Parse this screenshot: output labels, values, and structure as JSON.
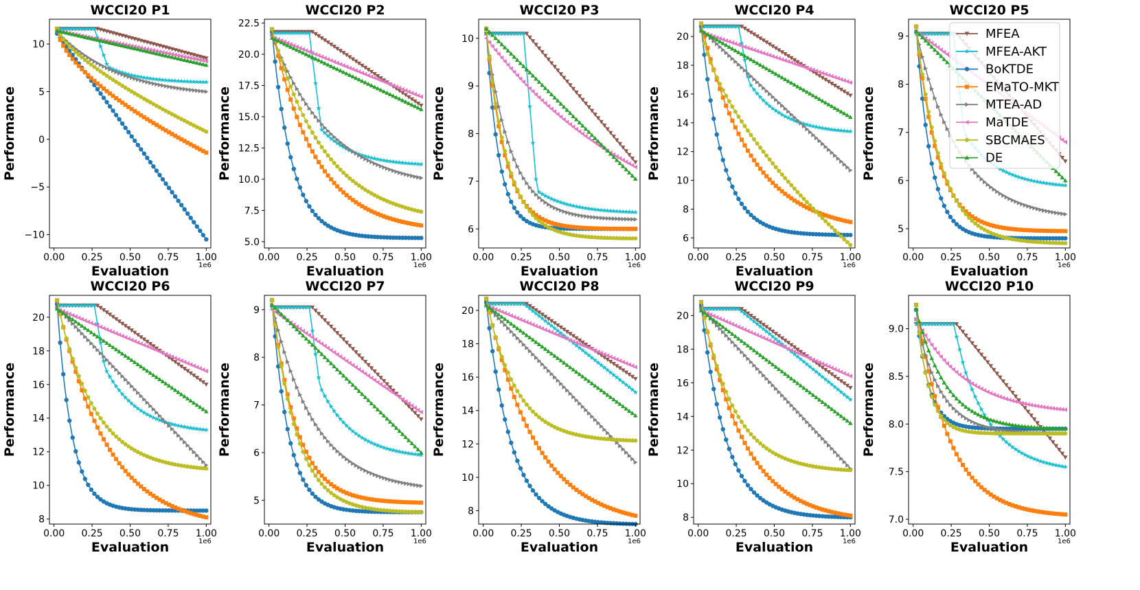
{
  "chart_data": {
    "type": "line",
    "series_names": [
      "MFEA",
      "MFEA-AKT",
      "BoKTDE",
      "EMaTO-MKT",
      "MTEA-AD",
      "MaTDE",
      "SBCMAES",
      "DE"
    ],
    "series_colors": [
      "#8c564b",
      "#17becf",
      "#1f77b4",
      "#ff7f0e",
      "#7f7f7f",
      "#e377c2",
      "#bcbd22",
      "#2ca02c"
    ],
    "series_markers": [
      "triangle-down",
      "star",
      "circle",
      "square",
      "triangle-right",
      "triangle-left",
      "pentagon",
      "triangle-up"
    ],
    "xlabel": "Evaluation",
    "ylabel": "Performance",
    "x_tick_labels": [
      "0.00",
      "0.25",
      "0.50",
      "0.75",
      "1.00"
    ],
    "x_offset_label": "1e6",
    "xlim": [
      -0.03,
      1.03
    ],
    "panels": [
      {
        "title": "WCCI20 P1",
        "ylim": [
          -11.4,
          12.6
        ],
        "yticks": [
          -10,
          -5,
          0,
          5,
          10
        ],
        "yticklabels": [
          "−10",
          "−5",
          "0",
          "5",
          "10"
        ],
        "series": [
          {
            "start": 11.6,
            "end": 8.5,
            "shape": "plateau_linear",
            "t0": 0.27
          },
          {
            "start": 11.6,
            "end": 6.0,
            "shape": "plateau_drop",
            "t0": 0.25,
            "drop": 7.6,
            "t1": 0.34
          },
          {
            "start": 11.1,
            "end": -10.5,
            "shape": "linear"
          },
          {
            "start": 11.6,
            "end": -1.4,
            "shape": "concave",
            "k": 1.6
          },
          {
            "start": 11.3,
            "end": 5.0,
            "shape": "exp",
            "k": 2.4
          },
          {
            "start": 11.4,
            "end": 8.2,
            "shape": "linear"
          },
          {
            "start": 11.6,
            "end": 0.8,
            "shape": "concave",
            "k": 1.4
          },
          {
            "start": 11.4,
            "end": 7.8,
            "shape": "linear"
          }
        ]
      },
      {
        "title": "WCCI20 P2",
        "ylim": [
          4.5,
          22.8
        ],
        "yticks": [
          5.0,
          7.5,
          10.0,
          12.5,
          15.0,
          17.5,
          20.0,
          22.5
        ],
        "yticklabels": [
          "5.0",
          "7.5",
          "10.0",
          "12.5",
          "15.0",
          "17.5",
          "20.0",
          "22.5"
        ],
        "series": [
          {
            "start": 21.8,
            "end": 15.9,
            "shape": "plateau_linear",
            "t0": 0.27
          },
          {
            "start": 21.7,
            "end": 11.2,
            "shape": "plateau_drop",
            "t0": 0.25,
            "drop": 14.0,
            "t1": 0.33
          },
          {
            "start": 21.8,
            "end": 5.3,
            "shape": "exp",
            "k": 7.5
          },
          {
            "start": 22.0,
            "end": 6.3,
            "shape": "exp",
            "k": 3.4
          },
          {
            "start": 21.6,
            "end": 10.1,
            "shape": "exp",
            "k": 2.6
          },
          {
            "start": 21.4,
            "end": 16.6,
            "shape": "linear"
          },
          {
            "start": 22.0,
            "end": 7.4,
            "shape": "exp",
            "k": 2.8
          },
          {
            "start": 21.3,
            "end": 15.6,
            "shape": "linear"
          }
        ]
      },
      {
        "title": "WCCI20 P3",
        "ylim": [
          5.6,
          10.4
        ],
        "yticks": [
          6,
          7,
          8,
          9,
          10
        ],
        "yticklabels": [
          "6",
          "7",
          "8",
          "9",
          "10"
        ],
        "series": [
          {
            "start": 10.1,
            "end": 7.4,
            "shape": "plateau_linear",
            "t0": 0.27
          },
          {
            "start": 10.1,
            "end": 6.35,
            "shape": "plateau_drop",
            "t0": 0.25,
            "drop": 6.8,
            "t1": 0.34
          },
          {
            "start": 10.2,
            "end": 6.0,
            "shape": "exp",
            "k": 12.0
          },
          {
            "start": 10.2,
            "end": 6.0,
            "shape": "exp",
            "k": 8.0
          },
          {
            "start": 10.1,
            "end": 6.2,
            "shape": "exp",
            "k": 6.0
          },
          {
            "start": 10.0,
            "end": 7.3,
            "shape": "exp",
            "k": 0.9
          },
          {
            "start": 10.2,
            "end": 5.8,
            "shape": "exp",
            "k": 7.0
          },
          {
            "start": 10.2,
            "end": 7.05,
            "shape": "linear"
          }
        ]
      },
      {
        "title": "WCCI20 P4",
        "ylim": [
          5.3,
          21.2
        ],
        "yticks": [
          6,
          8,
          10,
          12,
          14,
          16,
          18,
          20
        ],
        "yticklabels": [
          "6",
          "8",
          "10",
          "12",
          "14",
          "16",
          "18",
          "20"
        ],
        "series": [
          {
            "start": 20.7,
            "end": 15.9,
            "shape": "plateau_linear",
            "t0": 0.27
          },
          {
            "start": 20.7,
            "end": 13.4,
            "shape": "plateau_drop",
            "t0": 0.25,
            "drop": 16.8,
            "t1": 0.32
          },
          {
            "start": 20.7,
            "end": 6.2,
            "shape": "exp",
            "k": 7.0
          },
          {
            "start": 20.9,
            "end": 7.1,
            "shape": "exp",
            "k": 3.0
          },
          {
            "start": 20.5,
            "end": 10.7,
            "shape": "linear"
          },
          {
            "start": 20.3,
            "end": 16.8,
            "shape": "linear"
          },
          {
            "start": 20.9,
            "end": 5.5,
            "shape": "concave",
            "k": 1.6
          },
          {
            "start": 20.4,
            "end": 14.4,
            "shape": "linear"
          }
        ]
      },
      {
        "title": "WCCI20 P5",
        "ylim": [
          4.6,
          9.35
        ],
        "yticks": [
          5,
          6,
          7,
          8,
          9
        ],
        "yticklabels": [
          "5",
          "6",
          "7",
          "8",
          "9"
        ],
        "series": [
          {
            "start": 9.05,
            "end": 6.4,
            "shape": "plateau_linear",
            "t0": 0.27
          },
          {
            "start": 9.05,
            "end": 5.9,
            "shape": "plateau_drop",
            "t0": 0.25,
            "drop": 7.0,
            "t1": 0.32
          },
          {
            "start": 9.2,
            "end": 4.8,
            "shape": "exp",
            "k": 10.0
          },
          {
            "start": 9.2,
            "end": 4.95,
            "shape": "exp",
            "k": 7.0
          },
          {
            "start": 9.1,
            "end": 5.3,
            "shape": "exp",
            "k": 3.5
          },
          {
            "start": 9.1,
            "end": 6.8,
            "shape": "linear"
          },
          {
            "start": 9.2,
            "end": 4.7,
            "shape": "exp",
            "k": 6.0
          },
          {
            "start": 9.1,
            "end": 6.0,
            "shape": "linear"
          }
        ]
      },
      {
        "title": "WCCI20 P6",
        "ylim": [
          7.7,
          21.3
        ],
        "yticks": [
          8,
          10,
          12,
          14,
          16,
          18,
          20
        ],
        "yticklabels": [
          "8",
          "10",
          "12",
          "14",
          "16",
          "18",
          "20"
        ],
        "series": [
          {
            "start": 20.7,
            "end": 16.0,
            "shape": "plateau_linear",
            "t0": 0.27
          },
          {
            "start": 20.7,
            "end": 13.3,
            "shape": "plateau_drop",
            "t0": 0.25,
            "drop": 17.0,
            "t1": 0.32
          },
          {
            "start": 20.8,
            "end": 8.5,
            "shape": "exp",
            "k": 10.0
          },
          {
            "start": 21.0,
            "end": 8.1,
            "shape": "exp",
            "k": 3.0
          },
          {
            "start": 20.6,
            "end": 11.2,
            "shape": "linear"
          },
          {
            "start": 20.5,
            "end": 16.8,
            "shape": "linear"
          },
          {
            "start": 21.0,
            "end": 11.0,
            "shape": "exp",
            "k": 4.0
          },
          {
            "start": 20.5,
            "end": 14.4,
            "shape": "linear"
          }
        ]
      },
      {
        "title": "WCCI20 P7",
        "ylim": [
          4.5,
          9.3
        ],
        "yticks": [
          5,
          6,
          7,
          8,
          9
        ],
        "yticklabels": [
          "5",
          "6",
          "7",
          "8",
          "9"
        ],
        "series": [
          {
            "start": 9.05,
            "end": 6.7,
            "shape": "plateau_linear",
            "t0": 0.27
          },
          {
            "start": 9.05,
            "end": 5.95,
            "shape": "plateau_drop",
            "t0": 0.25,
            "drop": 7.4,
            "t1": 0.32
          },
          {
            "start": 9.2,
            "end": 4.75,
            "shape": "exp",
            "k": 9.0
          },
          {
            "start": 9.2,
            "end": 4.95,
            "shape": "exp",
            "k": 6.0
          },
          {
            "start": 9.1,
            "end": 5.3,
            "shape": "exp",
            "k": 3.5
          },
          {
            "start": 9.0,
            "end": 6.85,
            "shape": "linear"
          },
          {
            "start": 9.2,
            "end": 4.75,
            "shape": "exp",
            "k": 6.0
          },
          {
            "start": 9.1,
            "end": 6.0,
            "shape": "linear"
          }
        ]
      },
      {
        "title": "WCCI20 P8",
        "ylim": [
          7.2,
          20.9
        ],
        "yticks": [
          8,
          10,
          12,
          14,
          16,
          18,
          20
        ],
        "yticklabels": [
          "8",
          "10",
          "12",
          "14",
          "16",
          "18",
          "20"
        ],
        "series": [
          {
            "start": 20.4,
            "end": 15.9,
            "shape": "plateau_linear",
            "t0": 0.27
          },
          {
            "start": 20.4,
            "end": 15.1,
            "shape": "plateau_linear",
            "t0": 0.25
          },
          {
            "start": 20.5,
            "end": 7.2,
            "shape": "exp",
            "k": 6.0
          },
          {
            "start": 20.7,
            "end": 7.7,
            "shape": "exp",
            "k": 3.0
          },
          {
            "start": 20.3,
            "end": 10.9,
            "shape": "linear"
          },
          {
            "start": 20.3,
            "end": 16.6,
            "shape": "linear"
          },
          {
            "start": 20.7,
            "end": 12.2,
            "shape": "exp",
            "k": 5.0
          },
          {
            "start": 20.3,
            "end": 13.7,
            "shape": "linear"
          }
        ]
      },
      {
        "title": "WCCI20 P9",
        "ylim": [
          7.6,
          21.2
        ],
        "yticks": [
          8,
          10,
          12,
          14,
          16,
          18,
          20
        ],
        "yticklabels": [
          "8",
          "10",
          "12",
          "14",
          "16",
          "18",
          "20"
        ],
        "series": [
          {
            "start": 20.4,
            "end": 15.7,
            "shape": "plateau_linear",
            "t0": 0.27
          },
          {
            "start": 20.4,
            "end": 15.0,
            "shape": "plateau_linear",
            "t0": 0.25
          },
          {
            "start": 20.6,
            "end": 8.0,
            "shape": "exp",
            "k": 6.0
          },
          {
            "start": 20.8,
            "end": 8.1,
            "shape": "exp",
            "k": 3.5
          },
          {
            "start": 20.4,
            "end": 10.9,
            "shape": "linear"
          },
          {
            "start": 20.3,
            "end": 16.4,
            "shape": "linear"
          },
          {
            "start": 20.8,
            "end": 10.8,
            "shape": "exp",
            "k": 4.5
          },
          {
            "start": 20.3,
            "end": 13.6,
            "shape": "linear"
          }
        ]
      },
      {
        "title": "WCCI20 P10",
        "ylim": [
          6.95,
          9.35
        ],
        "yticks": [
          7.0,
          7.5,
          8.0,
          8.5,
          9.0
        ],
        "yticklabels": [
          "7.0",
          "7.5",
          "8.0",
          "8.5",
          "9.0"
        ],
        "series": [
          {
            "start": 9.05,
            "end": 7.65,
            "shape": "plateau_linear",
            "t0": 0.27
          },
          {
            "start": 9.05,
            "end": 7.55,
            "shape": "plateau_drop",
            "t0": 0.25,
            "drop": 8.6,
            "t1": 0.32
          },
          {
            "start": 9.2,
            "end": 7.95,
            "shape": "exp",
            "k": 12.0
          },
          {
            "start": 9.25,
            "end": 7.05,
            "shape": "exp",
            "k": 4.5
          },
          {
            "start": 9.1,
            "end": 7.9,
            "shape": "exp",
            "k": 6.0
          },
          {
            "start": 9.1,
            "end": 8.15,
            "shape": "exp",
            "k": 3.0
          },
          {
            "start": 9.25,
            "end": 7.9,
            "shape": "exp",
            "k": 12.0
          },
          {
            "start": 9.2,
            "end": 7.95,
            "shape": "exp",
            "k": 5.0
          }
        ]
      }
    ]
  }
}
